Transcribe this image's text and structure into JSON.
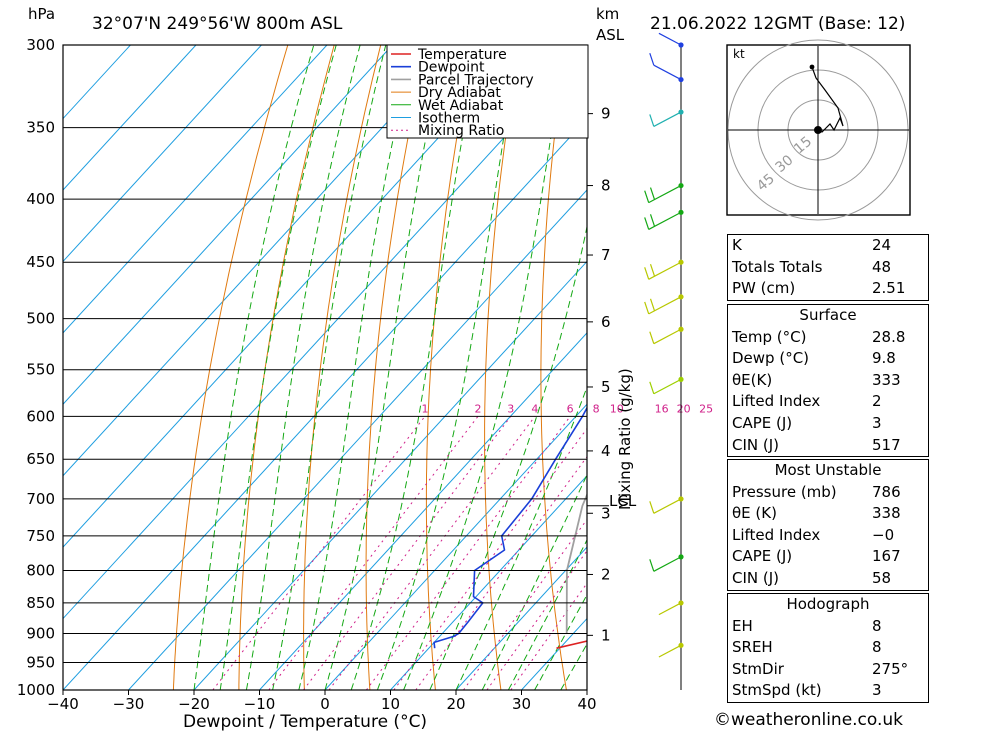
{
  "header": {
    "pressure_unit": "hPa",
    "location": "32°07'N  249°56'W  800m  ASL",
    "height_unit_1": "km",
    "height_unit_2": "ASL",
    "datetime": "21.06.2022  12GMT  (Base: 12)"
  },
  "colors": {
    "temperature": "#dd2222",
    "dewpoint": "#1a3fd8",
    "parcel": "#a0a0a0",
    "dry_adiabat": "#e07a10",
    "wet_adiabat": "#14a814",
    "isotherm": "#1e9ee0",
    "mixing_ratio": "#d0208a",
    "wind": "#b8c800"
  },
  "chart_data": {
    "type": "line",
    "title": "32°07'N  249°56'W  800m  ASL",
    "xlabel": "Dewpoint / Temperature (°C)",
    "ylabel": "hPa",
    "mixing_ratio_label": "Mixing Ratio (g/kg)",
    "xlim": [
      -40,
      40
    ],
    "ylim": [
      1000,
      300
    ],
    "x_ticks": [
      "−40",
      "−30",
      "−20",
      "−10",
      "0",
      "10",
      "20",
      "30",
      "40"
    ],
    "pressure_levels": [
      300,
      350,
      400,
      450,
      500,
      550,
      600,
      650,
      700,
      750,
      800,
      850,
      900,
      950,
      1000
    ],
    "height_ticks_km": [
      {
        "label": "1",
        "p": 903
      },
      {
        "label": "2",
        "p": 806
      },
      {
        "label": "3",
        "p": 719
      },
      {
        "label": "4",
        "p": 640
      },
      {
        "label": "5",
        "p": 568
      },
      {
        "label": "6",
        "p": 503
      },
      {
        "label": "7",
        "p": 444
      },
      {
        "label": "8",
        "p": 390
      },
      {
        "label": "9",
        "p": 341
      }
    ],
    "lcl": {
      "label": "LCL",
      "p": 709
    },
    "mixing_ratio_values": [
      "1",
      "2",
      "3",
      "4",
      "6",
      "8",
      "10",
      "16",
      "20",
      "25"
    ],
    "legend": [
      "Temperature",
      "Dewpoint",
      "Parcel Trajectory",
      "Dry Adiabat",
      "Wet Adiabat",
      "Isotherm",
      "Mixing Ratio"
    ],
    "series": [
      {
        "name": "Temperature",
        "points": [
          [
            925,
            29.5
          ],
          [
            912,
            33.3
          ],
          [
            900,
            33.6
          ],
          [
            870,
            32.8
          ],
          [
            850,
            32.3
          ],
          [
            800,
            28.6
          ],
          [
            750,
            26.3
          ],
          [
            700,
            19.6
          ],
          [
            650,
            13.6
          ],
          [
            600,
            7.2
          ],
          [
            550,
            2.3
          ],
          [
            500,
            -2.7
          ],
          [
            480,
            -3.9
          ],
          [
            450,
            -5.4
          ],
          [
            420,
            -7.0
          ],
          [
            400,
            -9.9
          ],
          [
            388,
            -8.3
          ],
          [
            370,
            -6.3
          ],
          [
            350,
            -8.7
          ],
          [
            330,
            -11.7
          ],
          [
            300,
            -17.9
          ]
        ]
      },
      {
        "name": "Dewpoint",
        "points": [
          [
            925,
            10.9
          ],
          [
            915,
            10.0
          ],
          [
            905,
            12.1
          ],
          [
            900,
            12.5
          ],
          [
            880,
            12.3
          ],
          [
            850,
            11.9
          ],
          [
            840,
            9.6
          ],
          [
            800,
            6.1
          ],
          [
            770,
            7.8
          ],
          [
            750,
            5.4
          ],
          [
            700,
            4.8
          ],
          [
            650,
            2.9
          ],
          [
            600,
            1.0
          ],
          [
            550,
            -1.7
          ],
          [
            530,
            -2.6
          ],
          [
            505,
            -7.3
          ],
          [
            495,
            -11.3
          ],
          [
            482,
            -9.5
          ],
          [
            470,
            -8.8
          ],
          [
            450,
            -6.4
          ],
          [
            430,
            -14.6
          ],
          [
            400,
            -15.0
          ],
          [
            390,
            -14.6
          ],
          [
            385,
            -23.4
          ],
          [
            370,
            -29.4
          ],
          [
            358,
            -33.6
          ],
          [
            350,
            -34.6
          ],
          [
            336,
            -26.9
          ],
          [
            329,
            -31.2
          ],
          [
            315,
            -16.1
          ],
          [
            310,
            -21.1
          ],
          [
            300,
            -20.6
          ]
        ]
      },
      {
        "name": "Parcel Trajectory",
        "points": [
          [
            900,
            29.0
          ],
          [
            800,
            20.2
          ],
          [
            709,
            13.5
          ],
          [
            650,
            10.0
          ],
          [
            600,
            6.6
          ],
          [
            550,
            2.4
          ],
          [
            500,
            -2.5
          ],
          [
            450,
            -6.5
          ],
          [
            400,
            -13.0
          ],
          [
            350,
            -20.5
          ],
          [
            300,
            -25.4
          ]
        ]
      }
    ]
  },
  "wind_profile_label": "wind barbs",
  "hodograph": {
    "unit": "kt",
    "rings": [
      "15",
      "30",
      "45"
    ]
  },
  "indices": {
    "k_label": "K",
    "k_value": "24",
    "tt_label": "Totals Totals",
    "tt_value": "48",
    "pw_label": "PW (cm)",
    "pw_value": "2.51"
  },
  "surface": {
    "title": "Surface",
    "temp_label": "Temp (°C)",
    "temp_value": "28.8",
    "dewp_label": "Dewp (°C)",
    "dewp_value": "9.8",
    "theta_label": "θE(K)",
    "theta_value": "333",
    "li_label": "Lifted Index",
    "li_value": "2",
    "cape_label": "CAPE (J)",
    "cape_value": "3",
    "cin_label": "CIN (J)",
    "cin_value": "517"
  },
  "most_unstable": {
    "title": "Most Unstable",
    "pressure_label": "Pressure (mb)",
    "pressure_value": "786",
    "theta_label": "θE (K)",
    "theta_value": "338",
    "li_label": "Lifted Index",
    "li_value": "−0",
    "cape_label": "CAPE (J)",
    "cape_value": "167",
    "cin_label": "CIN (J)",
    "cin_value": "58"
  },
  "hodograph_table": {
    "title": "Hodograph",
    "eh_label": "EH",
    "eh_value": "8",
    "sreh_label": "SREH",
    "sreh_value": "8",
    "stmdir_label": "StmDir",
    "stmdir_value": "275°",
    "stmspd_label": "StmSpd (kt)",
    "stmspd_value": "3"
  },
  "footer": "©weatheronline.co.uk"
}
